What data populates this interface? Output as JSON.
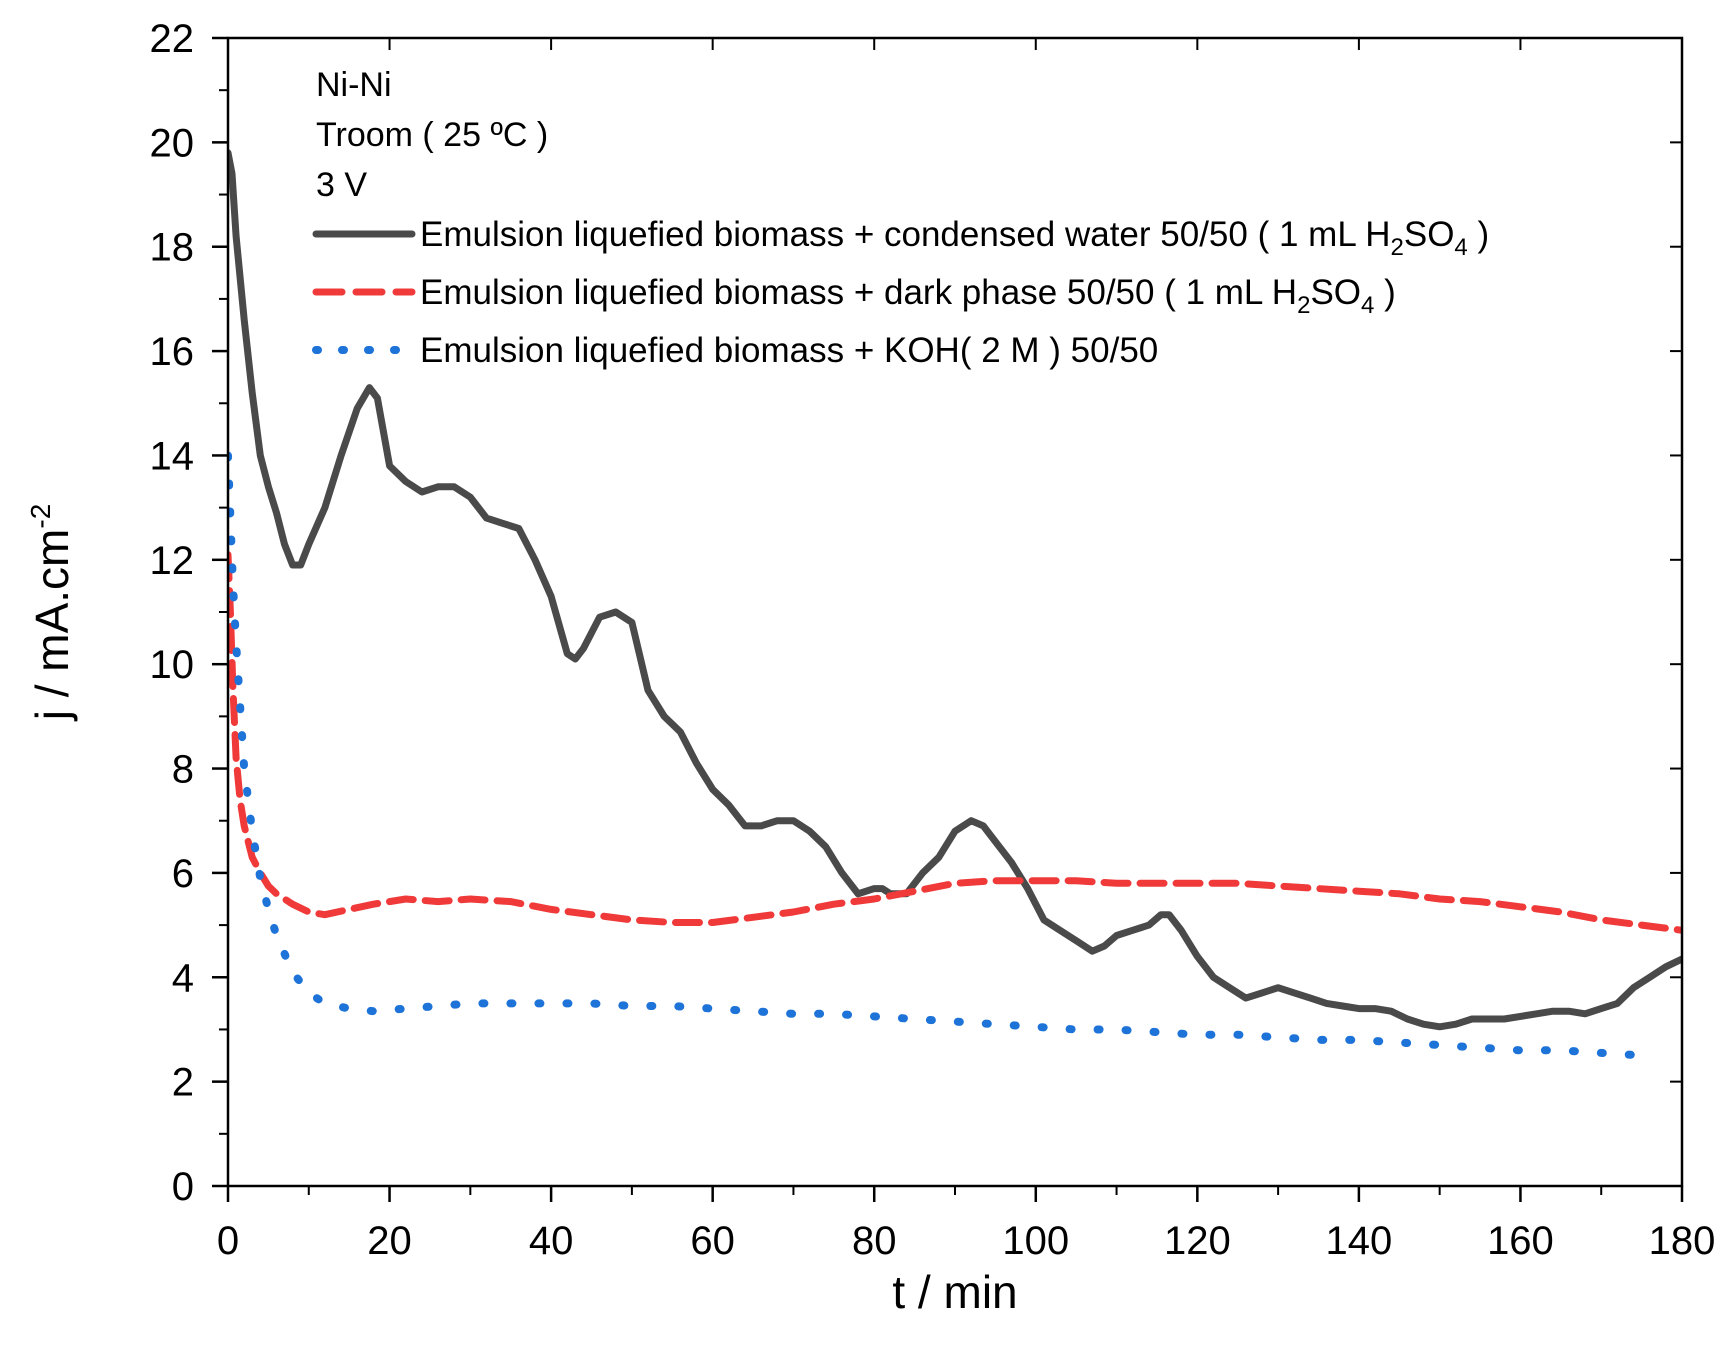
{
  "chart_data": {
    "type": "line",
    "title": "",
    "xlabel": "t / min",
    "ylabel": "j / mA.cm",
    "ylabel_sup": "-2",
    "xlim": [
      0,
      180
    ],
    "ylim": [
      0,
      22
    ],
    "xticks": [
      0,
      20,
      40,
      60,
      80,
      100,
      120,
      140,
      160,
      180
    ],
    "yticks": [
      0,
      2,
      4,
      6,
      8,
      10,
      12,
      14,
      16,
      18,
      20,
      22
    ],
    "grid": false,
    "legend_position": "top-right",
    "annotations": [
      "Ni-Ni",
      "Troom ( 25 ºC )",
      "3 V"
    ],
    "series": [
      {
        "name": "Emulsion liquefied biomass + condensed water 50/50 ( 1 mL H2SO4 )",
        "label_parts": [
          {
            "t": "Emulsion liquefied biomass + condensed water 50/50 ( 1 mL H"
          },
          {
            "t": "2",
            "sub": true
          },
          {
            "t": "SO"
          },
          {
            "t": "4",
            "sub": true
          },
          {
            "t": " )"
          }
        ],
        "color": "#4a4a4a",
        "style": "solid",
        "x": [
          0,
          0.5,
          1,
          2,
          3,
          4,
          5,
          6,
          7,
          8,
          9,
          10,
          12,
          14,
          16,
          17.5,
          18.5,
          20,
          22,
          24,
          26,
          28,
          30,
          32,
          34,
          36,
          38,
          40,
          42,
          43,
          44,
          46,
          48,
          50,
          52,
          54,
          56,
          58,
          60,
          62,
          64,
          66,
          68,
          70,
          72,
          74,
          76,
          78,
          80,
          81,
          82,
          84,
          86,
          88,
          90,
          92,
          93.5,
          95,
          97,
          99,
          101,
          103,
          105,
          107,
          108.5,
          110,
          112,
          114,
          115.5,
          116.5,
          118,
          120,
          122,
          124,
          126,
          128,
          130,
          132,
          134,
          136,
          138,
          140,
          142,
          144,
          146,
          148,
          150,
          152,
          154,
          156,
          158,
          160,
          162,
          164,
          166,
          168,
          170,
          172,
          174,
          176,
          178,
          180
        ],
        "y": [
          19.8,
          19.4,
          18.2,
          16.6,
          15.2,
          14.0,
          13.4,
          12.9,
          12.3,
          11.9,
          11.9,
          12.3,
          13.0,
          14.0,
          14.9,
          15.3,
          15.1,
          13.8,
          13.5,
          13.3,
          13.4,
          13.4,
          13.2,
          12.8,
          12.7,
          12.6,
          12.0,
          11.3,
          10.2,
          10.1,
          10.3,
          10.9,
          11.0,
          10.8,
          9.5,
          9.0,
          8.7,
          8.1,
          7.6,
          7.3,
          6.9,
          6.9,
          7.0,
          7.0,
          6.8,
          6.5,
          6.0,
          5.6,
          5.7,
          5.7,
          5.6,
          5.6,
          6.0,
          6.3,
          6.8,
          7.0,
          6.9,
          6.6,
          6.2,
          5.7,
          5.1,
          4.9,
          4.7,
          4.5,
          4.6,
          4.8,
          4.9,
          5.0,
          5.2,
          5.2,
          4.9,
          4.4,
          4.0,
          3.8,
          3.6,
          3.7,
          3.8,
          3.7,
          3.6,
          3.5,
          3.45,
          3.4,
          3.4,
          3.35,
          3.2,
          3.1,
          3.05,
          3.1,
          3.2,
          3.2,
          3.2,
          3.25,
          3.3,
          3.35,
          3.35,
          3.3,
          3.4,
          3.5,
          3.8,
          4.0,
          4.2,
          4.35
        ]
      },
      {
        "name": "Emulsion liquefied biomass + dark phase 50/50 ( 1 mL H2SO4 )",
        "label_parts": [
          {
            "t": "Emulsion liquefied biomass + dark phase 50/50 ( 1 mL H"
          },
          {
            "t": "2",
            "sub": true
          },
          {
            "t": "SO"
          },
          {
            "t": "4",
            "sub": true
          },
          {
            "t": " )"
          }
        ],
        "color": "#f03a3a",
        "style": "dashed",
        "x": [
          0,
          0.3,
          0.6,
          1,
          1.5,
          2,
          3,
          4,
          5,
          6,
          8,
          10,
          12,
          15,
          18,
          22,
          26,
          30,
          35,
          40,
          45,
          50,
          55,
          60,
          65,
          70,
          75,
          80,
          85,
          90,
          95,
          100,
          105,
          110,
          115,
          120,
          125,
          130,
          135,
          140,
          145,
          150,
          155,
          160,
          165,
          170,
          175,
          180
        ],
        "y": [
          12.1,
          11.0,
          9.6,
          8.2,
          7.4,
          6.9,
          6.3,
          6.0,
          5.75,
          5.6,
          5.4,
          5.25,
          5.2,
          5.3,
          5.4,
          5.5,
          5.45,
          5.5,
          5.45,
          5.3,
          5.2,
          5.1,
          5.05,
          5.05,
          5.15,
          5.25,
          5.4,
          5.5,
          5.65,
          5.8,
          5.85,
          5.85,
          5.85,
          5.8,
          5.8,
          5.8,
          5.8,
          5.75,
          5.7,
          5.65,
          5.6,
          5.5,
          5.45,
          5.35,
          5.25,
          5.1,
          5.0,
          4.9
        ]
      },
      {
        "name": "Emulsion liquefied biomass + KOH( 2 M ) 50/50",
        "label_parts": [
          {
            "t": "Emulsion liquefied biomass + KOH( 2 M ) 50/50"
          }
        ],
        "color": "#1e73d8",
        "style": "dotted",
        "x": [
          0,
          0.3,
          0.6,
          1,
          1.5,
          2,
          3,
          4,
          5,
          6,
          8,
          10,
          12,
          15,
          18,
          22,
          26,
          30,
          35,
          40,
          45,
          50,
          55,
          60,
          65,
          70,
          75,
          80,
          85,
          90,
          95,
          100,
          105,
          110,
          115,
          120,
          125,
          130,
          135,
          140,
          145,
          150,
          155,
          160,
          165,
          170,
          175
        ],
        "y": [
          14.0,
          12.8,
          11.6,
          10.4,
          9.2,
          8.0,
          6.8,
          5.9,
          5.3,
          4.8,
          4.1,
          3.7,
          3.5,
          3.4,
          3.35,
          3.4,
          3.45,
          3.5,
          3.5,
          3.5,
          3.5,
          3.45,
          3.45,
          3.4,
          3.35,
          3.3,
          3.3,
          3.25,
          3.2,
          3.15,
          3.1,
          3.05,
          3.0,
          3.0,
          2.95,
          2.9,
          2.9,
          2.85,
          2.8,
          2.8,
          2.75,
          2.7,
          2.65,
          2.6,
          2.6,
          2.55,
          2.5
        ]
      }
    ]
  }
}
